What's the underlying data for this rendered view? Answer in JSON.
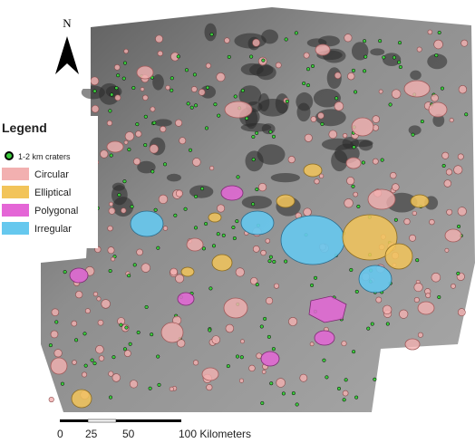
{
  "north_arrow": {
    "label": "N"
  },
  "legend": {
    "title": "Legend",
    "items": [
      {
        "label": "1-2 km craters",
        "color": "#3ccc3c"
      },
      {
        "label": "Circular",
        "color": "#f2b0b0"
      },
      {
        "label": "Elliptical",
        "color": "#f2c45a"
      },
      {
        "label": "Polygonal",
        "color": "#e466d6"
      },
      {
        "label": "Irregular",
        "color": "#66c8ee"
      }
    ]
  },
  "scale_bar": {
    "labels": [
      "0",
      "25",
      "50",
      "100 Kilometers"
    ]
  }
}
